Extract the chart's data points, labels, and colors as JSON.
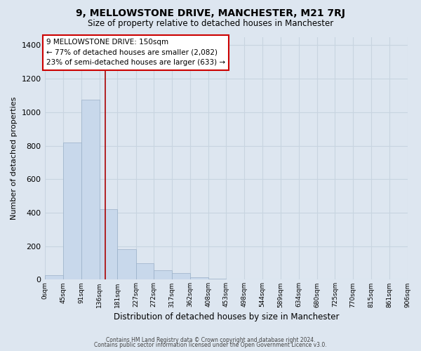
{
  "title": "9, MELLOWSTONE DRIVE, MANCHESTER, M21 7RJ",
  "subtitle": "Size of property relative to detached houses in Manchester",
  "xlabel": "Distribution of detached houses by size in Manchester",
  "ylabel": "Number of detached properties",
  "bar_values": [
    25,
    820,
    1075,
    420,
    180,
    100,
    55,
    40,
    15,
    5,
    0,
    0,
    0,
    0,
    0,
    0,
    0,
    0,
    0,
    0
  ],
  "bar_left_edges": [
    0,
    45,
    91,
    136,
    181,
    227,
    272,
    317,
    362,
    408,
    453,
    498,
    544,
    589,
    634,
    680,
    725,
    770,
    815,
    861
  ],
  "bin_widths": [
    45,
    46,
    45,
    45,
    46,
    45,
    45,
    45,
    46,
    45,
    45,
    46,
    45,
    45,
    46,
    45,
    45,
    45,
    46,
    45
  ],
  "x_tick_labels": [
    "0sqm",
    "45sqm",
    "91sqm",
    "136sqm",
    "181sqm",
    "227sqm",
    "272sqm",
    "317sqm",
    "362sqm",
    "408sqm",
    "453sqm",
    "498sqm",
    "544sqm",
    "589sqm",
    "634sqm",
    "680sqm",
    "725sqm",
    "770sqm",
    "815sqm",
    "861sqm",
    "906sqm"
  ],
  "x_tick_positions": [
    0,
    45,
    91,
    136,
    181,
    227,
    272,
    317,
    362,
    408,
    453,
    498,
    544,
    589,
    634,
    680,
    725,
    770,
    815,
    861,
    906
  ],
  "ylim": [
    0,
    1450
  ],
  "xlim": [
    0,
    906
  ],
  "yticks": [
    0,
    200,
    400,
    600,
    800,
    1000,
    1200,
    1400
  ],
  "bar_color": "#c8d8eb",
  "bar_edge_color": "#9ab0c8",
  "marker_x": 150,
  "marker_color": "#aa0000",
  "annotation_title": "9 MELLOWSTONE DRIVE: 150sqm",
  "annotation_line1": "← 77% of detached houses are smaller (2,082)",
  "annotation_line2": "23% of semi-detached houses are larger (633) →",
  "annotation_box_color": "#cc0000",
  "annotation_box_fill": "#ffffff",
  "grid_color": "#c8d4e0",
  "background_color": "#dde6f0",
  "plot_bg_color": "#dde6f0",
  "footer_line1": "Contains HM Land Registry data © Crown copyright and database right 2024.",
  "footer_line2": "Contains public sector information licensed under the Open Government Licence v3.0."
}
